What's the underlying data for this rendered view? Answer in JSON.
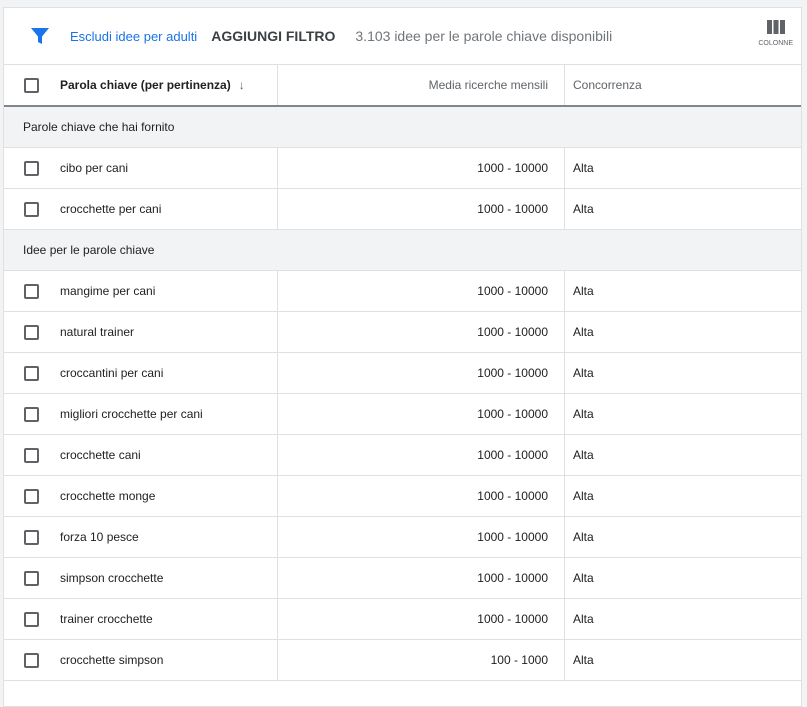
{
  "toolbar": {
    "exclude_adult": "Escludi idee per adulti",
    "add_filter": "AGGIUNGI FILTRO",
    "count": "3.103 idee per le parole chiave disponibili",
    "columns": "COLONNE",
    "accent": "#1a73e8"
  },
  "table": {
    "headers": {
      "keyword": "Parola chiave (per pertinenza)",
      "sort_icon": "↓",
      "searches": "Media ricerche mensili",
      "competition": "Concorrenza"
    },
    "sections": [
      {
        "title": "Parole chiave che hai fornito",
        "rows": [
          {
            "keyword": "cibo per cani",
            "searches": "1000 - 10000",
            "competition": "Alta"
          },
          {
            "keyword": "crocchette per cani",
            "searches": "1000 - 10000",
            "competition": "Alta"
          }
        ]
      },
      {
        "title": "Idee per le parole chiave",
        "rows": [
          {
            "keyword": "mangime per cani",
            "searches": "1000 - 10000",
            "competition": "Alta"
          },
          {
            "keyword": "natural trainer",
            "searches": "1000 - 10000",
            "competition": "Alta"
          },
          {
            "keyword": "croccantini per cani",
            "searches": "1000 - 10000",
            "competition": "Alta"
          },
          {
            "keyword": "migliori crocchette per cani",
            "searches": "1000 - 10000",
            "competition": "Alta"
          },
          {
            "keyword": "crocchette cani",
            "searches": "1000 - 10000",
            "competition": "Alta"
          },
          {
            "keyword": "crocchette monge",
            "searches": "1000 - 10000",
            "competition": "Alta"
          },
          {
            "keyword": "forza 10 pesce",
            "searches": "1000 - 10000",
            "competition": "Alta"
          },
          {
            "keyword": "simpson crocchette",
            "searches": "1000 - 10000",
            "competition": "Alta"
          },
          {
            "keyword": "trainer crocchette",
            "searches": "1000 - 10000",
            "competition": "Alta"
          },
          {
            "keyword": "crocchette simpson",
            "searches": "100 - 1000",
            "competition": "Alta"
          }
        ]
      }
    ]
  }
}
